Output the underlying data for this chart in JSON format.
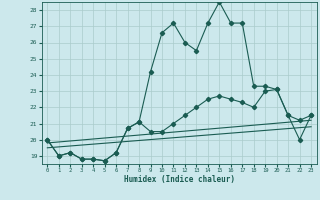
{
  "xlabel": "Humidex (Indice chaleur)",
  "bg_color": "#cce8ec",
  "grid_color": "#aacccc",
  "line_color": "#1a5c52",
  "xlim": [
    -0.5,
    23.5
  ],
  "ylim": [
    18.5,
    28.5
  ],
  "xticks": [
    0,
    1,
    2,
    3,
    4,
    5,
    6,
    7,
    8,
    9,
    10,
    11,
    12,
    13,
    14,
    15,
    16,
    17,
    18,
    19,
    20,
    21,
    22,
    23
  ],
  "yticks": [
    19,
    20,
    21,
    22,
    23,
    24,
    25,
    26,
    27,
    28
  ],
  "series1_x": [
    0,
    1,
    2,
    3,
    4,
    5,
    6,
    7,
    8,
    9,
    10,
    11,
    12,
    13,
    14,
    15,
    16,
    17,
    18,
    19,
    20,
    21,
    22,
    23
  ],
  "series1_y": [
    20.0,
    19.0,
    19.2,
    18.8,
    18.8,
    18.7,
    19.2,
    20.7,
    21.1,
    24.2,
    26.6,
    27.2,
    26.0,
    25.5,
    27.2,
    28.5,
    27.2,
    27.2,
    23.3,
    23.3,
    23.1,
    21.5,
    20.0,
    21.5
  ],
  "series2_x": [
    0,
    1,
    2,
    3,
    4,
    5,
    6,
    7,
    8,
    9,
    10,
    11,
    12,
    13,
    14,
    15,
    16,
    17,
    18,
    19,
    20,
    21,
    22,
    23
  ],
  "series2_y": [
    20.0,
    19.0,
    19.2,
    18.8,
    18.8,
    18.7,
    19.2,
    20.7,
    21.1,
    20.5,
    20.5,
    21.0,
    21.5,
    22.0,
    22.5,
    22.7,
    22.5,
    22.3,
    22.0,
    23.0,
    23.1,
    21.5,
    21.2,
    21.5
  ],
  "line3_x": [
    0,
    23
  ],
  "line3_y": [
    19.8,
    21.2
  ],
  "line4_x": [
    0,
    23
  ],
  "line4_y": [
    19.5,
    20.8
  ]
}
